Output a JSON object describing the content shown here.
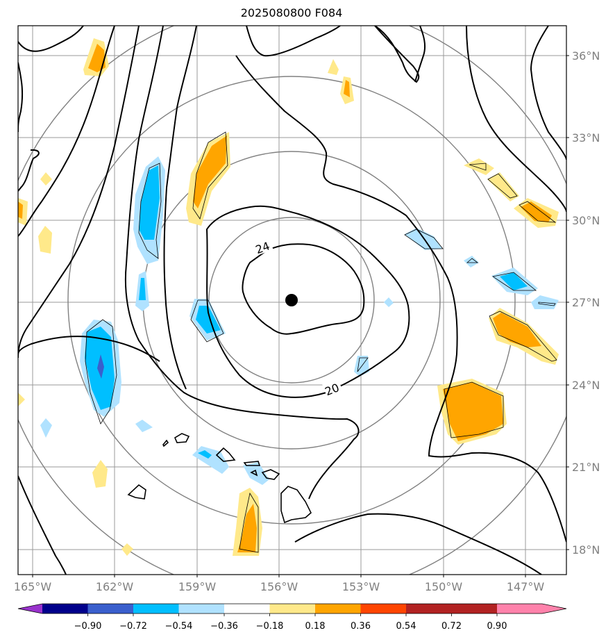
{
  "title": "2025080800 F084",
  "map": {
    "lat_ticks": [
      "36°N",
      "33°N",
      "30°N",
      "27°N",
      "24°N",
      "21°N",
      "18°N"
    ],
    "lon_ticks": [
      "165°W",
      "162°W",
      "159°W",
      "156°W",
      "153°W",
      "150°W",
      "147°W"
    ],
    "center_marker": {
      "lat": 27.1,
      "lon": -155.4
    },
    "contour_labels": [
      "24",
      "20"
    ],
    "range_rings": 4
  },
  "colorbar": {
    "ticks": [
      "−0.90",
      "−0.72",
      "−0.54",
      "−0.36",
      "−0.18",
      "0.18",
      "0.36",
      "0.54",
      "0.72",
      "0.90"
    ],
    "colors": [
      "#9932CC",
      "#00008B",
      "#3A5FCD",
      "#00BFFF",
      "#B0E2FF",
      "#FFFFFF",
      "#FFE98A",
      "#FFA500",
      "#FF4500",
      "#B22222",
      "#FF82AB"
    ]
  }
}
